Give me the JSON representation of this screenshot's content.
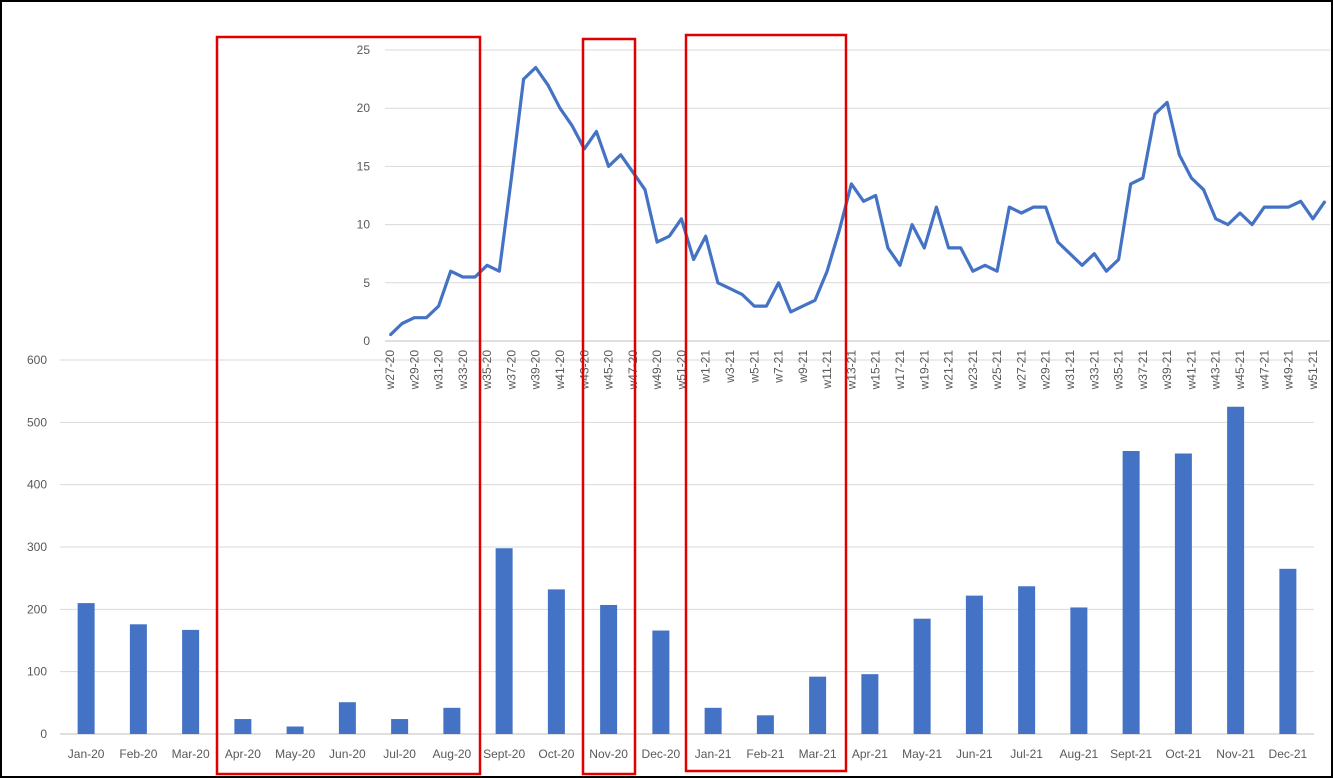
{
  "chart_data": [
    {
      "type": "bar",
      "categories": [
        "Jan-20",
        "Feb-20",
        "Mar-20",
        "Apr-20",
        "May-20",
        "Jun-20",
        "Jul-20",
        "Aug-20",
        "Sept-20",
        "Oct-20",
        "Nov-20",
        "Dec-20",
        "Jan-21",
        "Feb-21",
        "Mar-21",
        "Apr-21",
        "May-21",
        "Jun-21",
        "Jul-21",
        "Aug-21",
        "Sept-21",
        "Oct-21",
        "Nov-21",
        "Dec-21"
      ],
      "values": [
        210,
        176,
        167,
        24,
        12,
        51,
        24,
        42,
        298,
        232,
        207,
        166,
        42,
        30,
        92,
        96,
        185,
        222,
        237,
        203,
        454,
        450,
        525,
        265
      ],
      "ylim": [
        0,
        600
      ],
      "yticks": [
        0,
        100,
        200,
        300,
        400,
        500,
        600
      ],
      "grid": true,
      "color": "#4472C4"
    },
    {
      "type": "line",
      "x": [
        "w27-20",
        "w28-20",
        "w29-20",
        "w30-20",
        "w31-20",
        "w32-20",
        "w33-20",
        "w34-20",
        "w35-20",
        "w36-20",
        "w37-20",
        "w38-20",
        "w39-20",
        "w40-20",
        "w41-20",
        "w42-20",
        "w43-20",
        "w44-20",
        "w45-20",
        "w46-20",
        "w47-20",
        "w48-20",
        "w49-20",
        "w50-20",
        "w51-20",
        "w52-20",
        "w1-21",
        "w2-21",
        "w3-21",
        "w4-21",
        "w5-21",
        "w6-21",
        "w7-21",
        "w8-21",
        "w9-21",
        "w10-21",
        "w11-21",
        "w12-21",
        "w13-21",
        "w14-21",
        "w15-21",
        "w16-21",
        "w17-21",
        "w18-21",
        "w19-21",
        "w20-21",
        "w21-21",
        "w22-21",
        "w23-21",
        "w24-21",
        "w25-21",
        "w26-21",
        "w27-21",
        "w28-21",
        "w29-21",
        "w30-21",
        "w31-21",
        "w32-21",
        "w33-21",
        "w34-21",
        "w35-21",
        "w36-21",
        "w37-21",
        "w38-21",
        "w39-21",
        "w40-21",
        "w41-21",
        "w42-21",
        "w43-21",
        "w44-21",
        "w45-21",
        "w46-21",
        "w47-21",
        "w48-21",
        "w49-21",
        "w50-21",
        "w51-21",
        "w52-21"
      ],
      "xtick_labels": [
        "w27-20",
        "w29-20",
        "w31-20",
        "w33-20",
        "w35-20",
        "w37-20",
        "w39-20",
        "w41-20",
        "w43-20",
        "w45-20",
        "w47-20",
        "w49-20",
        "w51-20",
        "w1-21",
        "w3-21",
        "w5-21",
        "w7-21",
        "w9-21",
        "w11-21",
        "w13-21",
        "w15-21",
        "w17-21",
        "w19-21",
        "w21-21",
        "w23-21",
        "w25-21",
        "w27-21",
        "w29-21",
        "w31-21",
        "w33-21",
        "w35-21",
        "w37-21",
        "w39-21",
        "w41-21",
        "w43-21",
        "w45-21",
        "w47-21",
        "w49-21",
        "w51-21"
      ],
      "values": [
        0.5,
        1.5,
        2,
        2,
        3,
        6,
        5.5,
        5.5,
        6.5,
        6,
        14,
        22.5,
        23.5,
        22,
        20,
        18.5,
        16.5,
        18,
        15,
        16,
        14.5,
        13,
        8.5,
        9,
        10.5,
        7,
        9,
        5,
        4.5,
        4,
        3,
        3,
        5,
        2.5,
        3,
        3.5,
        6,
        9.5,
        13.5,
        12,
        12.5,
        8,
        6.5,
        10,
        8,
        11.5,
        8,
        8,
        6,
        6.5,
        6,
        11.5,
        11,
        11.5,
        11.5,
        8.5,
        7.5,
        6.5,
        7.5,
        6,
        7,
        13.5,
        14,
        19.5,
        20.5,
        16,
        14,
        13,
        10.5,
        10,
        11,
        10,
        11.5,
        11.5,
        11.5,
        12,
        10.5,
        12
      ],
      "ylim": [
        0,
        25
      ],
      "yticks": [
        0,
        5,
        10,
        15,
        20,
        25
      ],
      "grid": true,
      "color": "#4472C4"
    }
  ],
  "annotations": {
    "highlight_color": "#E00000"
  }
}
